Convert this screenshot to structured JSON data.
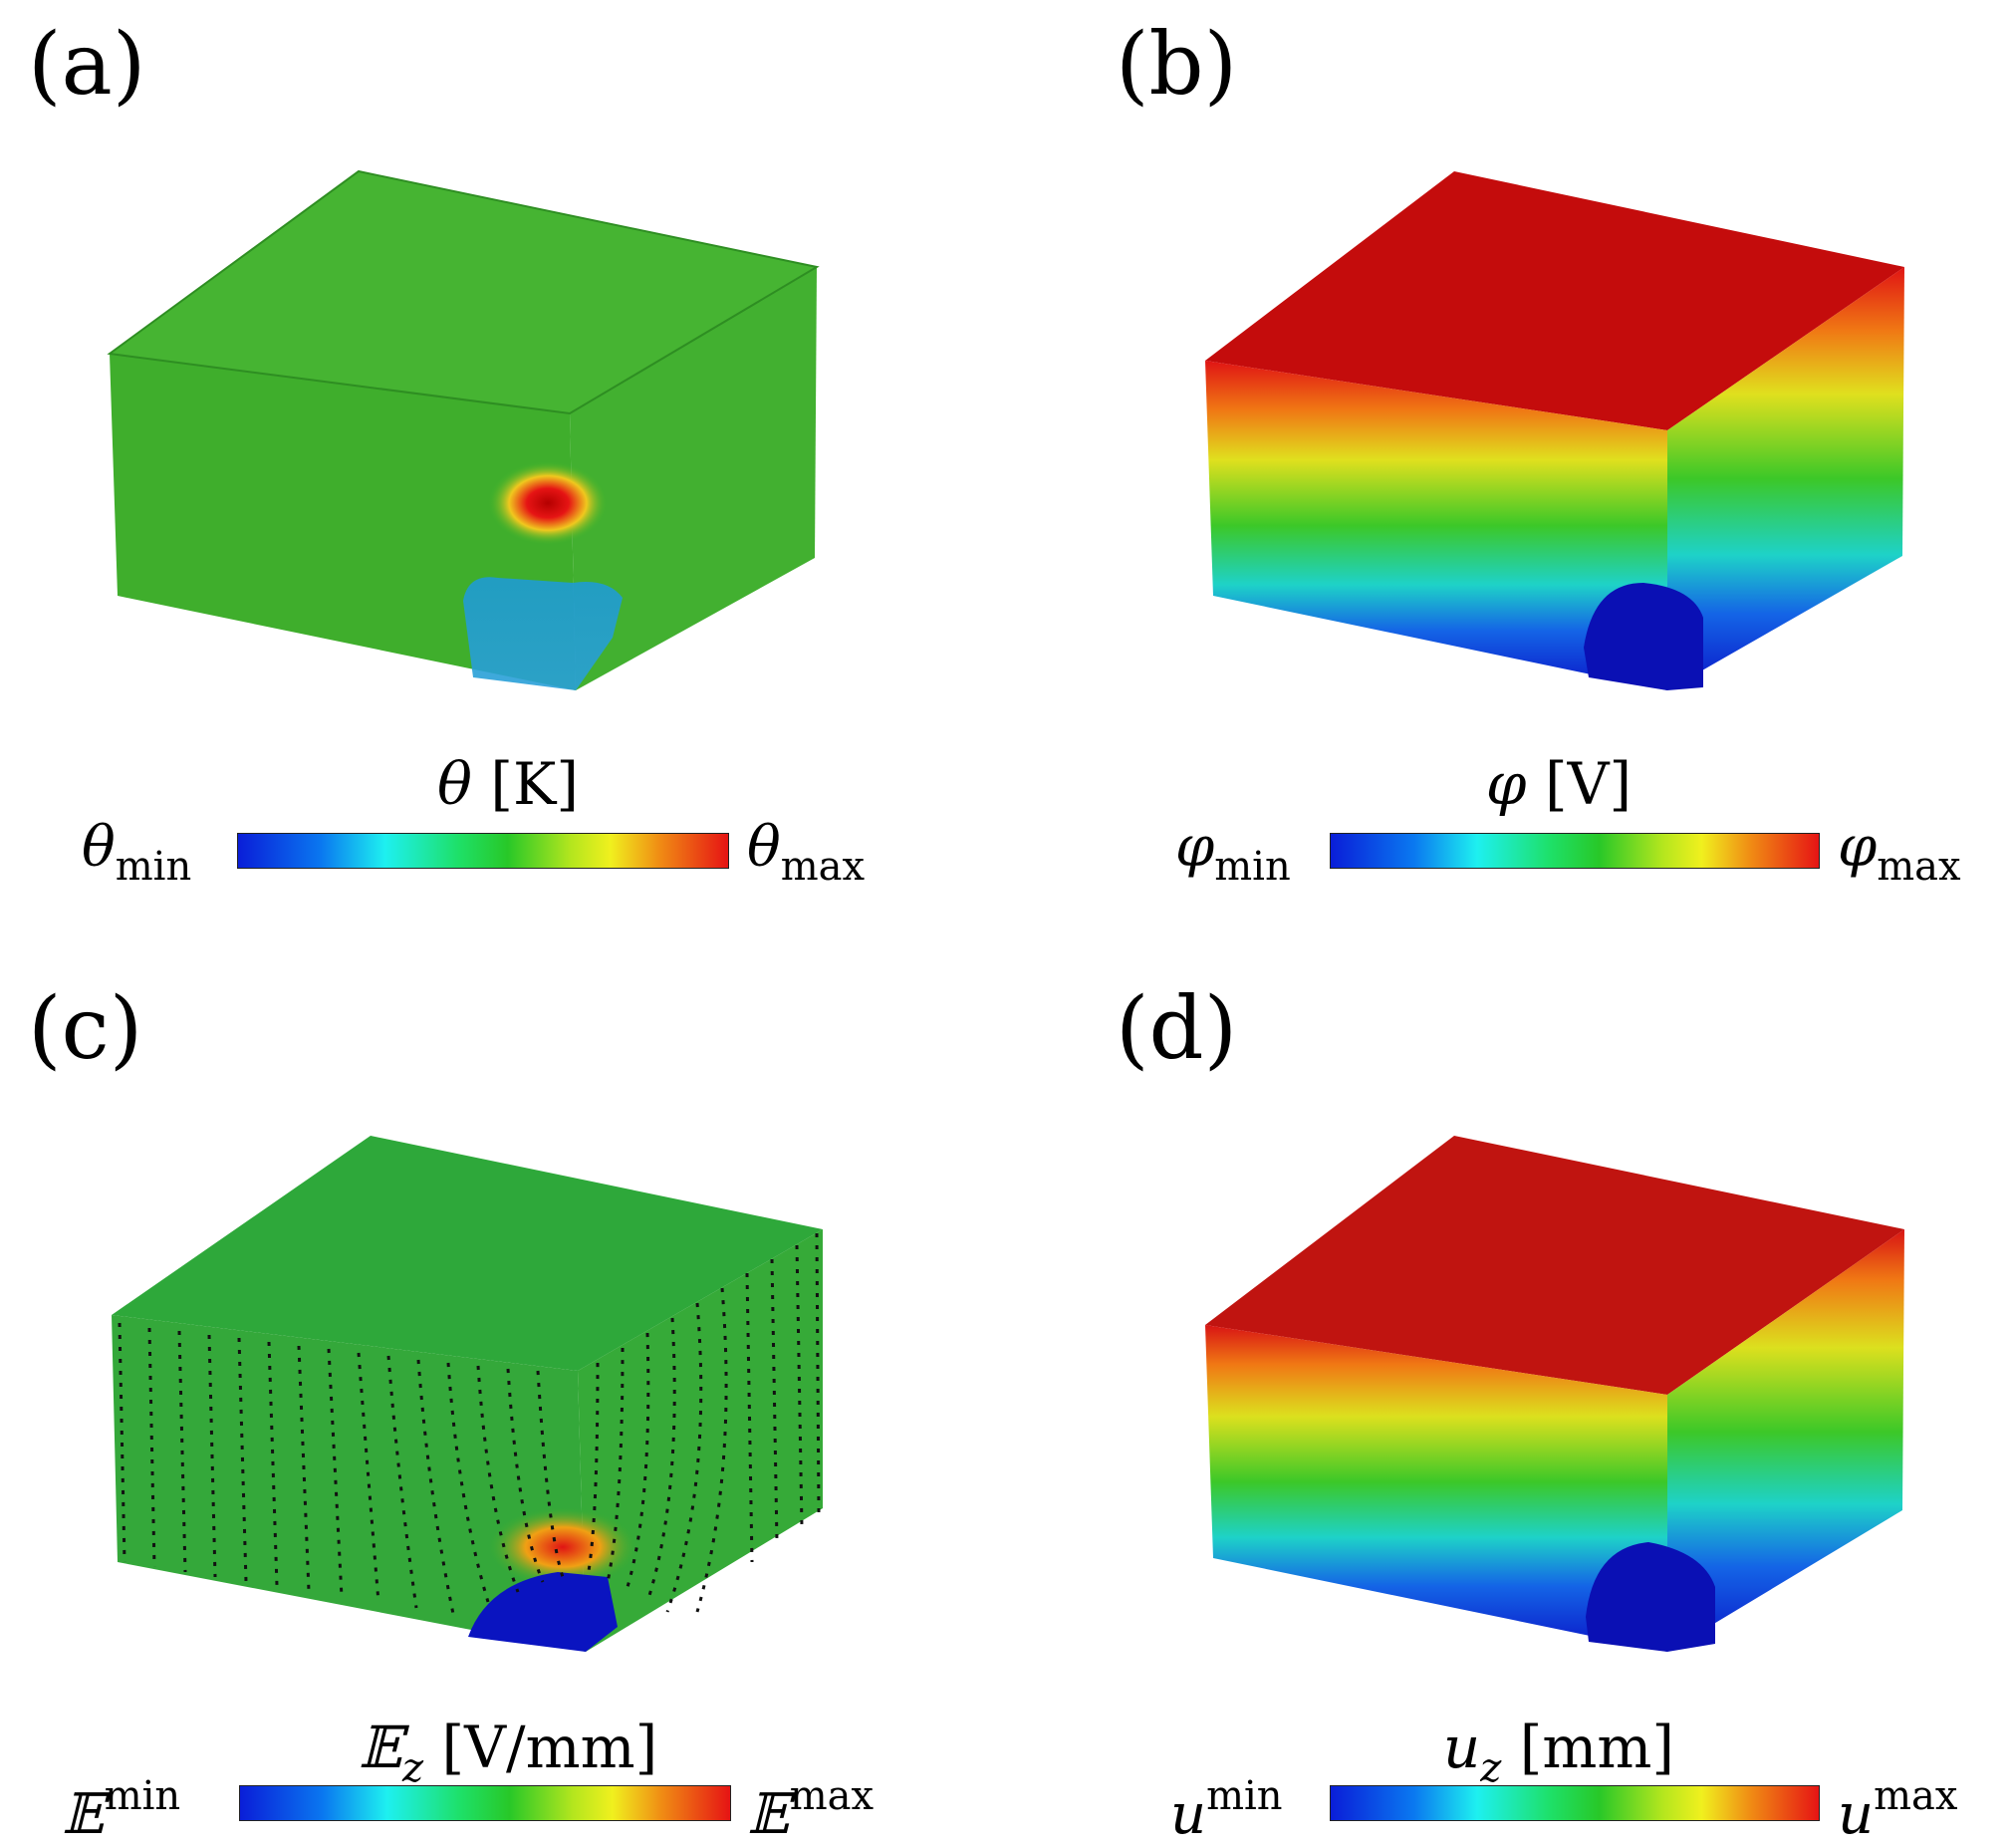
{
  "panels": [
    {
      "label": "(a)",
      "colorbar": {
        "title": "θ [K]",
        "min_label": "θmin",
        "max_label": "θmax",
        "symbol": "θ",
        "unit": "[K]",
        "min_sub": "min",
        "max_sub": "max"
      }
    },
    {
      "label": "(b)",
      "colorbar": {
        "title": "φ [V]",
        "min_label": "φmin",
        "max_label": "φmax",
        "symbol": "φ",
        "unit": "[V]",
        "min_sub": "min",
        "max_sub": "max"
      }
    },
    {
      "label": "(c)",
      "colorbar": {
        "title": "𝔼z [V/mm]",
        "min_label": "𝔼zmin",
        "max_label": "𝔼zmax",
        "symbol": "𝔼",
        "unit": "[V/mm]",
        "sub": "z",
        "min_sup": "min",
        "max_sup": "max"
      }
    },
    {
      "label": "(d)",
      "colorbar": {
        "title": "uz [mm]",
        "min_label": "uzmin",
        "max_label": "uzmax",
        "symbol": "u",
        "unit": "[mm]",
        "sub": "z",
        "min_sup": "min",
        "max_sup": "max"
      }
    }
  ],
  "colormap": [
    "#0a1ed8",
    "#1ef0f0",
    "#28c828",
    "#f0f01e",
    "#e61414"
  ]
}
